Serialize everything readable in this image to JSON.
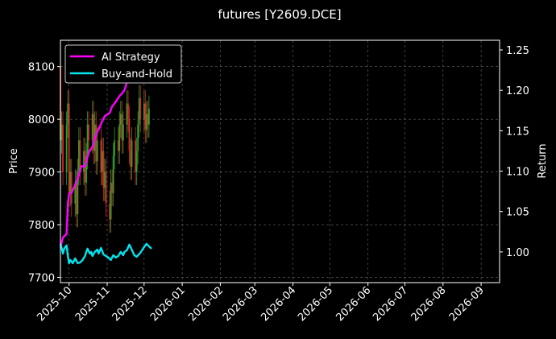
{
  "chart_data": {
    "type": "line",
    "title": "futures [Y2609.DCE]",
    "xlabel": "",
    "ylabel_left": "Price",
    "ylabel_right": "Return",
    "x_ticks": [
      "2025-10",
      "2025-11",
      "2025-12",
      "2026-01",
      "2026-02",
      "2026-03",
      "2026-04",
      "2026-05",
      "2026-06",
      "2026-07",
      "2026-08",
      "2026-09"
    ],
    "x_range": [
      "2025-09-24",
      "2026-09-16"
    ],
    "ylim_left": [
      7690,
      8150
    ],
    "ylim_right": [
      0.962,
      1.262
    ],
    "y_ticks_left": [
      "7700",
      "7800",
      "7900",
      "8000",
      "8100"
    ],
    "y_ticks_right": [
      "1.00",
      "1.05",
      "1.10",
      "1.15",
      "1.20",
      "1.25"
    ],
    "grid": true,
    "legend_position": "top-left",
    "colors": {
      "up": "#2ca02c",
      "down": "#d62728",
      "ai": "#ff00ff",
      "bh": "#00e5ee"
    },
    "series": [
      {
        "name": "AI Strategy",
        "axis": "right",
        "x": [
          "2025-09-24",
          "2025-09-26",
          "2025-09-29",
          "2025-09-30",
          "2025-10-01",
          "2025-10-03",
          "2025-10-06",
          "2025-10-09",
          "2025-10-11",
          "2025-10-14",
          "2025-10-17",
          "2025-10-20",
          "2025-10-22",
          "2025-10-24",
          "2025-10-26",
          "2025-10-28",
          "2025-10-30",
          "2025-11-01",
          "2025-11-03",
          "2025-11-05",
          "2025-11-07",
          "2025-11-09",
          "2025-11-11",
          "2025-11-13",
          "2025-11-15",
          "2025-11-17",
          "2025-11-19",
          "2025-11-21",
          "2025-11-22",
          "2025-11-23"
        ],
        "values": [
          1.005,
          1.018,
          1.022,
          1.06,
          1.072,
          1.073,
          1.083,
          1.095,
          1.106,
          1.106,
          1.123,
          1.13,
          1.141,
          1.149,
          1.155,
          1.162,
          1.168,
          1.17,
          1.172,
          1.18,
          1.184,
          1.188,
          1.193,
          1.196,
          1.2,
          1.21,
          1.214,
          1.22,
          1.22,
          1.22
        ]
      },
      {
        "name": "Buy-and-Hold",
        "axis": "right",
        "x": [
          "2025-09-24",
          "2025-09-25",
          "2025-09-26",
          "2025-09-27",
          "2025-09-29",
          "2025-09-30",
          "2025-10-01",
          "2025-10-02",
          "2025-10-04",
          "2025-10-06",
          "2025-10-08",
          "2025-10-10",
          "2025-10-12",
          "2025-10-14",
          "2025-10-15",
          "2025-10-16",
          "2025-10-18",
          "2025-10-19",
          "2025-10-20",
          "2025-10-22",
          "2025-10-24",
          "2025-10-25",
          "2025-10-27",
          "2025-10-29",
          "2025-10-31",
          "2025-11-02",
          "2025-11-04",
          "2025-11-06",
          "2025-11-08",
          "2025-11-10",
          "2025-11-12",
          "2025-11-14",
          "2025-11-15",
          "2025-11-17",
          "2025-11-19",
          "2025-11-21",
          "2025-11-23",
          "2025-11-25",
          "2025-11-28",
          "2025-12-01",
          "2025-12-03",
          "2025-12-05",
          "2025-12-07"
        ],
        "values": [
          1.01,
          1.005,
          0.998,
          1.004,
          1.008,
          0.995,
          0.986,
          0.99,
          0.986,
          0.992,
          0.986,
          0.987,
          0.99,
          0.995,
          1.0,
          1.004,
          0.998,
          1.0,
          0.995,
          1.0,
          1.003,
          0.998,
          1.005,
          0.997,
          0.995,
          0.993,
          0.99,
          0.996,
          0.993,
          0.995,
          1.0,
          0.996,
          1.0,
          1.002,
          1.009,
          1.003,
          0.996,
          0.994,
          0.999,
          1.006,
          1.01,
          1.007,
          1.004
        ]
      }
    ],
    "candles": [
      {
        "x": "2025-09-24",
        "open": 8100,
        "close": 7960
      },
      {
        "x": "2025-09-25",
        "open": 7960,
        "close": 7990
      },
      {
        "x": "2025-09-26",
        "open": 7990,
        "close": 7900
      },
      {
        "x": "2025-09-29",
        "open": 7900,
        "close": 7990
      },
      {
        "x": "2025-09-30",
        "open": 7990,
        "close": 8030
      },
      {
        "x": "2025-10-01",
        "open": 8030,
        "close": 7860
      },
      {
        "x": "2025-10-02",
        "open": 7860,
        "close": 7900
      },
      {
        "x": "2025-10-03",
        "open": 7900,
        "close": 7840
      },
      {
        "x": "2025-10-06",
        "open": 7840,
        "close": 7880
      },
      {
        "x": "2025-10-07",
        "open": 7880,
        "close": 7820
      },
      {
        "x": "2025-10-08",
        "open": 7820,
        "close": 7900
      },
      {
        "x": "2025-10-09",
        "open": 7900,
        "close": 7960
      },
      {
        "x": "2025-10-10",
        "open": 7960,
        "close": 7900
      },
      {
        "x": "2025-10-13",
        "open": 7900,
        "close": 7940
      },
      {
        "x": "2025-10-14",
        "open": 7940,
        "close": 7880
      },
      {
        "x": "2025-10-15",
        "open": 7880,
        "close": 7930
      },
      {
        "x": "2025-10-16",
        "open": 7930,
        "close": 7990
      },
      {
        "x": "2025-10-17",
        "open": 7990,
        "close": 7960
      },
      {
        "x": "2025-10-20",
        "open": 7960,
        "close": 8010
      },
      {
        "x": "2025-10-21",
        "open": 8010,
        "close": 7940
      },
      {
        "x": "2025-10-22",
        "open": 7940,
        "close": 7990
      },
      {
        "x": "2025-10-23",
        "open": 7990,
        "close": 7920
      },
      {
        "x": "2025-10-24",
        "open": 7920,
        "close": 7960
      },
      {
        "x": "2025-10-27",
        "open": 7960,
        "close": 7900
      },
      {
        "x": "2025-10-28",
        "open": 7900,
        "close": 7940
      },
      {
        "x": "2025-10-29",
        "open": 7940,
        "close": 7870
      },
      {
        "x": "2025-10-30",
        "open": 7870,
        "close": 7900
      },
      {
        "x": "2025-10-31",
        "open": 7900,
        "close": 7840
      },
      {
        "x": "2025-11-03",
        "open": 7840,
        "close": 7810
      },
      {
        "x": "2025-11-04",
        "open": 7810,
        "close": 7880
      },
      {
        "x": "2025-11-05",
        "open": 7880,
        "close": 7860
      },
      {
        "x": "2025-11-06",
        "open": 7860,
        "close": 7930
      },
      {
        "x": "2025-11-07",
        "open": 7930,
        "close": 7960
      },
      {
        "x": "2025-11-10",
        "open": 7960,
        "close": 7940
      },
      {
        "x": "2025-11-11",
        "open": 7940,
        "close": 7990
      },
      {
        "x": "2025-11-12",
        "open": 7990,
        "close": 8010
      },
      {
        "x": "2025-11-13",
        "open": 8010,
        "close": 7960
      },
      {
        "x": "2025-11-14",
        "open": 7960,
        "close": 7990
      },
      {
        "x": "2025-11-17",
        "open": 7990,
        "close": 8030
      },
      {
        "x": "2025-11-18",
        "open": 8030,
        "close": 8000
      },
      {
        "x": "2025-11-19",
        "open": 8000,
        "close": 7940
      },
      {
        "x": "2025-11-20",
        "open": 7940,
        "close": 7910
      },
      {
        "x": "2025-11-21",
        "open": 7910,
        "close": 7960
      },
      {
        "x": "2025-11-24",
        "open": 7960,
        "close": 7900
      },
      {
        "x": "2025-11-25",
        "open": 7900,
        "close": 7940
      },
      {
        "x": "2025-11-26",
        "open": 7940,
        "close": 7990
      },
      {
        "x": "2025-11-27",
        "open": 7990,
        "close": 8040
      },
      {
        "x": "2025-11-28",
        "open": 8040,
        "close": 8000
      },
      {
        "x": "2025-12-01",
        "open": 8000,
        "close": 8030
      },
      {
        "x": "2025-12-02",
        "open": 8030,
        "close": 7980
      },
      {
        "x": "2025-12-03",
        "open": 7980,
        "close": 8010
      },
      {
        "x": "2025-12-04",
        "open": 8010,
        "close": 7990
      },
      {
        "x": "2025-12-05",
        "open": 7990,
        "close": 8020
      }
    ]
  }
}
